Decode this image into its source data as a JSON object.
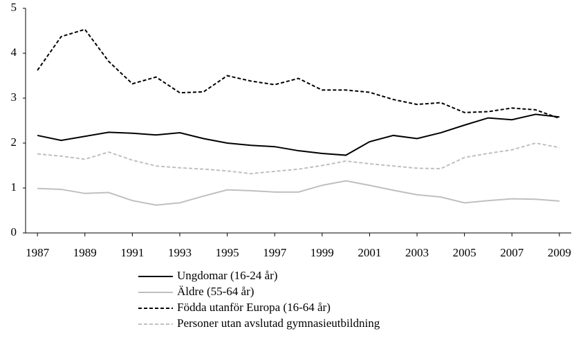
{
  "chart_data": {
    "type": "line",
    "x": [
      1987,
      1988,
      1989,
      1990,
      1991,
      1992,
      1993,
      1994,
      1995,
      1996,
      1997,
      1998,
      1999,
      2000,
      2001,
      2002,
      2003,
      2004,
      2005,
      2006,
      2007,
      2008,
      2009
    ],
    "xlim": [
      1986.5,
      2009.5
    ],
    "xticks": [
      1987,
      1989,
      1991,
      1993,
      1995,
      1997,
      1999,
      2001,
      2003,
      2005,
      2007,
      2009
    ],
    "ylim": [
      0,
      5
    ],
    "yticks": [
      0,
      1,
      2,
      3,
      4,
      5
    ],
    "grid": false,
    "legend": "bottom",
    "series": [
      {
        "name": "Ungdomar (16-24 år)",
        "color": "#000000",
        "dash": false,
        "values": [
          2.17,
          2.06,
          2.15,
          2.24,
          2.22,
          2.18,
          2.23,
          2.1,
          2.0,
          1.95,
          1.92,
          1.83,
          1.77,
          1.73,
          2.03,
          2.17,
          2.1,
          2.23,
          2.4,
          2.56,
          2.52,
          2.64,
          2.58
        ]
      },
      {
        "name": "Äldre (55-64 år)",
        "color": "#bfbfbf",
        "dash": false,
        "values": [
          0.99,
          0.97,
          0.88,
          0.9,
          0.72,
          0.62,
          0.67,
          0.82,
          0.96,
          0.94,
          0.91,
          0.91,
          1.06,
          1.16,
          1.06,
          0.95,
          0.85,
          0.8,
          0.67,
          0.72,
          0.76,
          0.75,
          0.71
        ]
      },
      {
        "name": "Födda utanför Europa (16-64 år)",
        "color": "#000000",
        "dash": true,
        "values": [
          3.62,
          4.37,
          4.53,
          3.82,
          3.32,
          3.47,
          3.12,
          3.14,
          3.5,
          3.38,
          3.3,
          3.44,
          3.18,
          3.18,
          3.13,
          2.97,
          2.86,
          2.9,
          2.68,
          2.7,
          2.78,
          2.74,
          2.55
        ]
      },
      {
        "name": "Personer utan avslutad gymnasieutbildning",
        "color": "#bfbfbf",
        "dash": true,
        "values": [
          1.76,
          1.71,
          1.64,
          1.8,
          1.62,
          1.49,
          1.45,
          1.42,
          1.38,
          1.32,
          1.37,
          1.42,
          1.5,
          1.6,
          1.54,
          1.49,
          1.44,
          1.43,
          1.68,
          1.77,
          1.85,
          2.0,
          1.9
        ]
      }
    ]
  }
}
